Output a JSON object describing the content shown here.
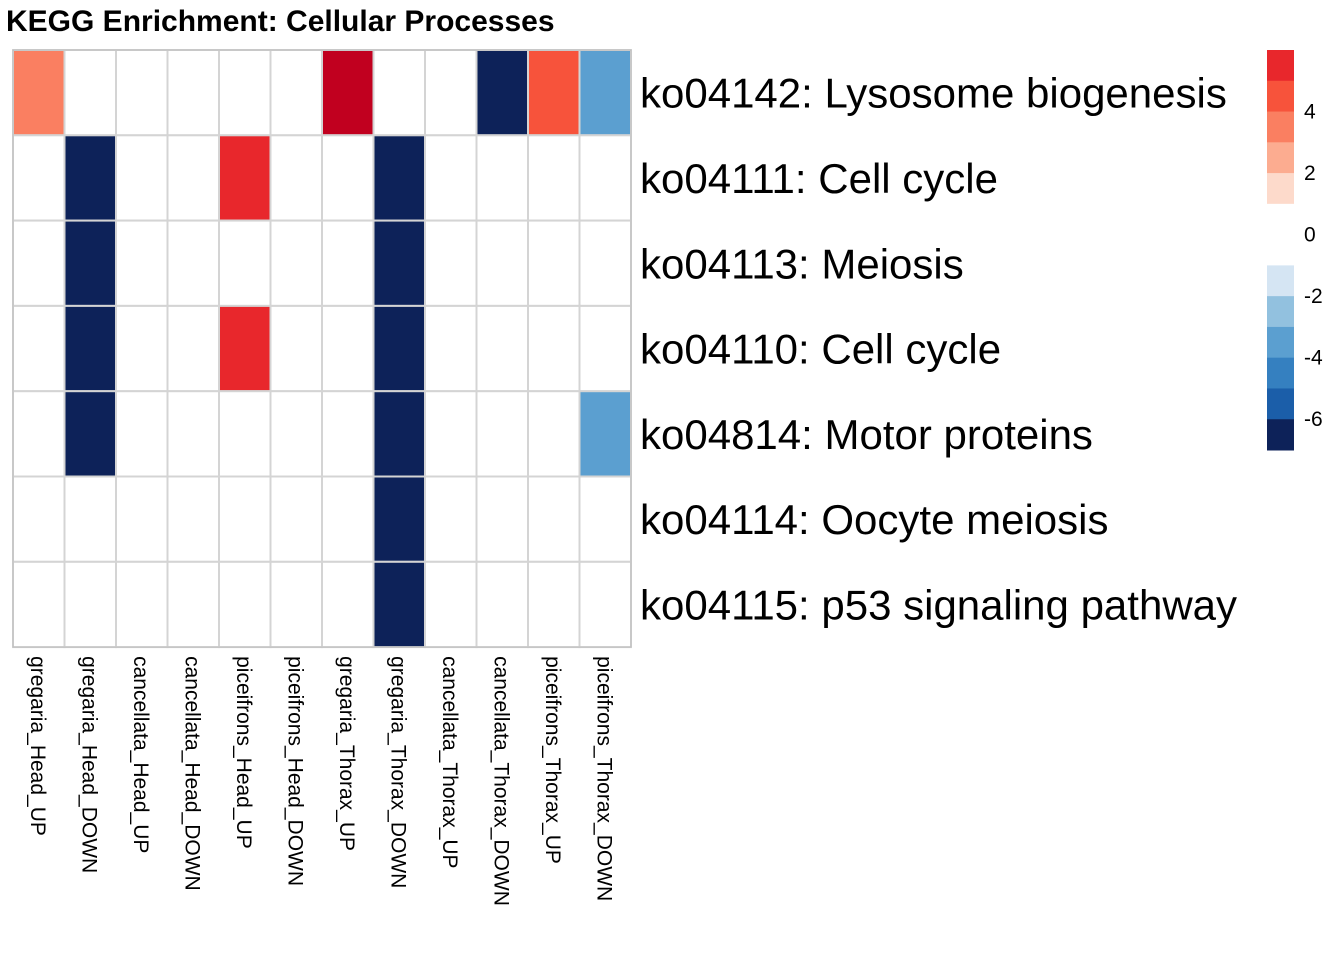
{
  "chart_data": {
    "type": "heatmap",
    "title": "KEGG Enrichment: Cellular Processes",
    "rows": [
      "ko04142: Lysosome biogenesis",
      "ko04111: Cell cycle",
      "ko04113: Meiosis",
      "ko04110: Cell cycle",
      "ko04814: Motor proteins",
      "ko04114: Oocyte meiosis",
      "ko04115: p53 signaling pathway"
    ],
    "columns": [
      "gregaria_Head_UP",
      "gregaria_Head_DOWN",
      "cancellata_Head_UP",
      "cancellata_Head_DOWN",
      "piceifrons_Head_UP",
      "piceifrons_Head_DOWN",
      "gregaria_Thorax_UP",
      "gregaria_Thorax_DOWN",
      "cancellata_Thorax_UP",
      "cancellata_Thorax_DOWN",
      "piceifrons_Thorax_UP",
      "piceifrons_Thorax_DOWN"
    ],
    "values": [
      [
        3,
        0,
        0,
        0,
        0,
        0,
        7,
        0,
        0,
        -7,
        4,
        -4
      ],
      [
        0,
        -7,
        0,
        0,
        5,
        0,
        0,
        -7,
        0,
        0,
        0,
        0
      ],
      [
        0,
        -7,
        0,
        0,
        0,
        0,
        0,
        -7,
        0,
        0,
        0,
        0
      ],
      [
        0,
        -7,
        0,
        0,
        5,
        0,
        0,
        -7,
        0,
        0,
        0,
        0
      ],
      [
        0,
        -7,
        0,
        0,
        0,
        0,
        0,
        -7,
        0,
        0,
        0,
        -4
      ],
      [
        0,
        0,
        0,
        0,
        0,
        0,
        0,
        -7,
        0,
        0,
        0,
        0
      ],
      [
        0,
        0,
        0,
        0,
        0,
        0,
        0,
        -7,
        0,
        0,
        0,
        0
      ]
    ],
    "legend": {
      "ticks": [
        "4",
        "2",
        "0",
        "-2",
        "-4",
        "-6"
      ],
      "tick_values": [
        4,
        2,
        0,
        -2,
        -4,
        -6
      ],
      "bins": [
        {
          "min": 5,
          "max": 6,
          "color": "#e8272c"
        },
        {
          "min": 4,
          "max": 5,
          "color": "#f7533b"
        },
        {
          "min": 3,
          "max": 4,
          "color": "#fa7f61"
        },
        {
          "min": 2,
          "max": 3,
          "color": "#fcac90"
        },
        {
          "min": 1,
          "max": 2,
          "color": "#fddacb"
        },
        {
          "min": 0,
          "max": 1,
          "color": "#ffffff"
        },
        {
          "min": -1,
          "max": 0,
          "color": "#ffffff"
        },
        {
          "min": -2,
          "max": -1,
          "color": "#d5e5f3"
        },
        {
          "min": -3,
          "max": -2,
          "color": "#92c1df"
        },
        {
          "min": -4,
          "max": -3,
          "color": "#5b9fd0"
        },
        {
          "min": -5,
          "max": -4,
          "color": "#3580c0"
        },
        {
          "min": -6,
          "max": -5,
          "color": "#1b5ea9"
        },
        {
          "min": -7,
          "max": -6,
          "color": "#0d2259"
        }
      ],
      "range": [
        -7,
        6
      ]
    },
    "colors": {
      "extreme_high": "#c1001f",
      "grid_line": "#d4d4d4",
      "border": "#bcbcbc"
    }
  }
}
